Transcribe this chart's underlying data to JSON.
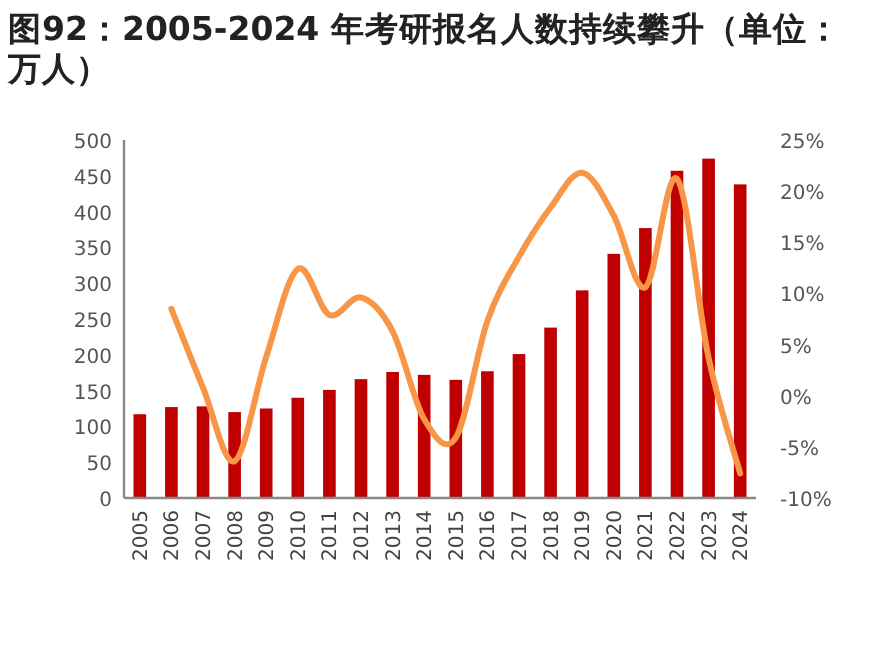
{
  "chart_data": {
    "type": "bar",
    "title": "图92：2005-2024 年考研报名人数持续攀升（单位：万人）",
    "categories": [
      "2005",
      "2006",
      "2007",
      "2008",
      "2009",
      "2010",
      "2011",
      "2012",
      "2013",
      "2014",
      "2015",
      "2016",
      "2017",
      "2018",
      "2019",
      "2020",
      "2021",
      "2022",
      "2023",
      "2024"
    ],
    "series": [
      {
        "color": "#c00000",
        "values": [
          117,
          127,
          128,
          120,
          125,
          140,
          151,
          166,
          176,
          172,
          165,
          177,
          201,
          238,
          290,
          341,
          377,
          457,
          474,
          438
        ]
      },
      {
        "type": "line",
        "axis": "y2",
        "color": "#f79646",
        "values": [
          null,
          8.5,
          0.8,
          -6.4,
          3.8,
          12.4,
          7.9,
          9.6,
          6.3,
          -2.3,
          -4.1,
          7.3,
          13.6,
          18.4,
          21.8,
          17.6,
          10.6,
          21.2,
          3.7,
          -7.6
        ]
      }
    ],
    "ylim": [
      0,
      500
    ],
    "yticks": [
      0,
      50,
      100,
      150,
      200,
      250,
      300,
      350,
      400,
      450,
      500
    ],
    "y2lim": [
      -10,
      25
    ],
    "y2ticks": [
      {
        "value": -10,
        "label": "-10%"
      },
      {
        "value": -5,
        "label": "-5%"
      },
      {
        "value": 0,
        "label": "0%"
      },
      {
        "value": 5,
        "label": "5%"
      },
      {
        "value": 10,
        "label": "10%"
      },
      {
        "value": 15,
        "label": "15%"
      },
      {
        "value": 20,
        "label": "20%"
      },
      {
        "value": 25,
        "label": "25%"
      }
    ],
    "grid": false
  }
}
